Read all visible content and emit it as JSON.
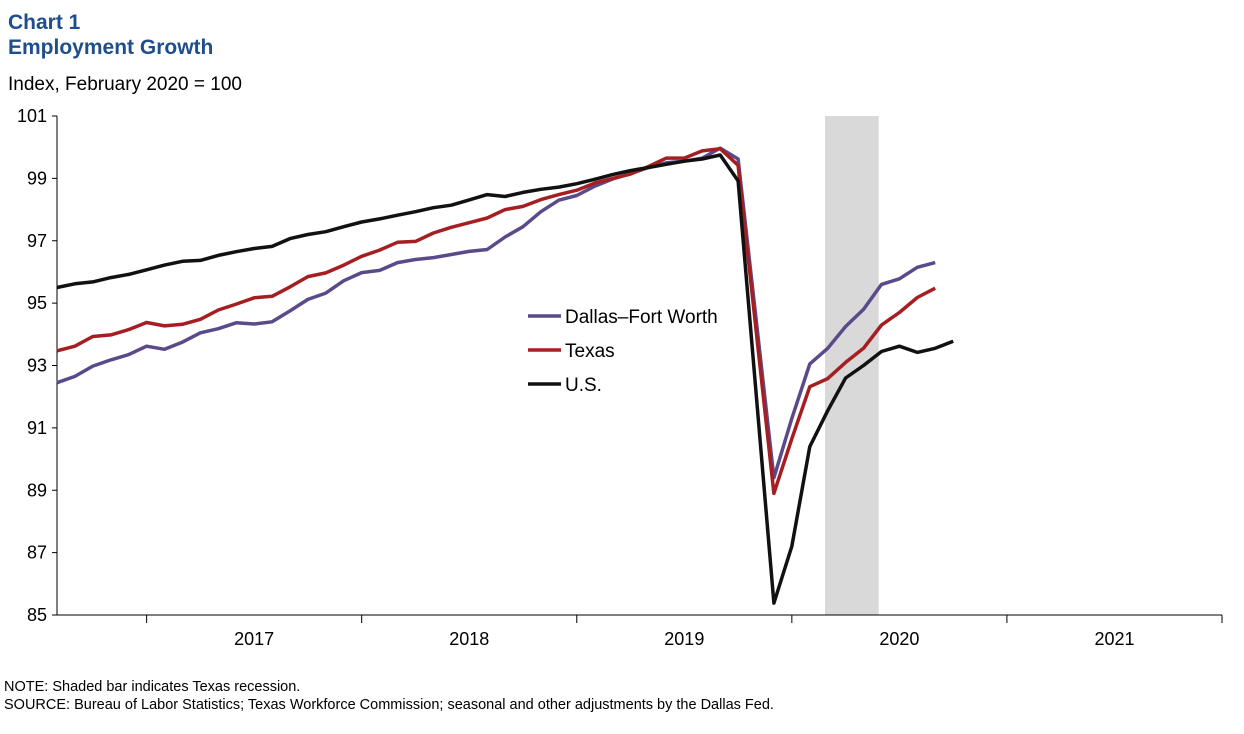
{
  "header": {
    "chart_number": "Chart 1",
    "title": "Employment  Growth",
    "subtitle": "Index, February 2020 = 100"
  },
  "notes": {
    "note": "NOTE:  Shaded bar indicates Texas  recession.",
    "source": "SOURCE:  Bureau of  Labor Statistics; Texas  Workforce Commission;  seasonal and other adjustments  by the Dallas Fed."
  },
  "colors": {
    "dfw": "#5B4A8A",
    "texas": "#A51E22",
    "us": "#111111",
    "recession": "#D9D9D9",
    "title": "#1F4E8C"
  },
  "chart_data": {
    "type": "line",
    "ylim": [
      85,
      101
    ],
    "yticks": [
      85,
      87,
      89,
      91,
      93,
      95,
      97,
      99,
      101
    ],
    "xlim": [
      "2016-08",
      "2021-12"
    ],
    "x_year_labels": [
      "2017",
      "2018",
      "2019",
      "2020",
      "2021"
    ],
    "recession_shading": {
      "start": "2020-03",
      "end": "2020-06"
    },
    "legend": {
      "position": "center"
    },
    "x": [
      "2016-08",
      "2016-09",
      "2016-10",
      "2016-11",
      "2016-12",
      "2017-01",
      "2017-02",
      "2017-03",
      "2017-04",
      "2017-05",
      "2017-06",
      "2017-07",
      "2017-08",
      "2017-09",
      "2017-10",
      "2017-11",
      "2017-12",
      "2018-01",
      "2018-02",
      "2018-03",
      "2018-04",
      "2018-05",
      "2018-06",
      "2018-07",
      "2018-08",
      "2018-09",
      "2018-10",
      "2018-11",
      "2018-12",
      "2019-01",
      "2019-02",
      "2019-03",
      "2019-04",
      "2019-05",
      "2019-06",
      "2019-07",
      "2019-08",
      "2019-09",
      "2019-10",
      "2019-11",
      "2019-12",
      "2020-01",
      "2020-02",
      "2020-03",
      "2020-04",
      "2020-05",
      "2020-06",
      "2020-07",
      "2020-08",
      "2020-09",
      "2020-10",
      "2020-11",
      "2020-12",
      "2021-01",
      "2021-02",
      "2021-03",
      "2021-04"
    ],
    "series": [
      {
        "name": "Dallas–Fort Worth",
        "values": [
          92.45,
          92.65,
          92.98,
          93.18,
          93.35,
          93.62,
          93.52,
          93.75,
          94.05,
          94.18,
          94.37,
          94.33,
          94.4,
          94.75,
          95.12,
          95.32,
          95.72,
          95.98,
          96.05,
          96.3,
          96.4,
          96.46,
          96.56,
          96.66,
          96.72,
          97.12,
          97.45,
          97.93,
          98.3,
          98.45,
          98.75,
          98.98,
          99.15,
          99.35,
          99.5,
          99.55,
          99.65,
          99.97,
          99.62,
          null,
          89.4,
          91.3,
          93.05,
          93.55,
          94.25,
          94.8,
          95.6,
          95.78,
          96.15,
          96.3,
          null,
          null,
          null,
          null,
          null,
          null,
          null
        ]
      },
      {
        "name": "Texas",
        "values": [
          93.47,
          93.62,
          93.93,
          93.98,
          94.15,
          94.38,
          94.27,
          94.32,
          94.48,
          94.78,
          94.97,
          95.17,
          95.22,
          95.52,
          95.85,
          95.97,
          96.22,
          96.5,
          96.7,
          96.95,
          96.98,
          97.25,
          97.43,
          97.58,
          97.73,
          98.0,
          98.1,
          98.32,
          98.48,
          98.62,
          98.85,
          99.0,
          99.14,
          99.38,
          99.65,
          99.65,
          99.88,
          99.95,
          99.42,
          null,
          88.9,
          90.65,
          92.32,
          92.58,
          93.1,
          93.55,
          94.3,
          94.7,
          95.18,
          95.48,
          null,
          null,
          null,
          null,
          null,
          null,
          null
        ]
      },
      {
        "name": "U.S.",
        "values": [
          95.5,
          95.62,
          95.68,
          95.82,
          95.92,
          96.07,
          96.22,
          96.34,
          96.37,
          96.53,
          96.65,
          96.75,
          96.82,
          97.07,
          97.2,
          97.29,
          97.45,
          97.6,
          97.7,
          97.82,
          97.93,
          98.06,
          98.14,
          98.31,
          98.48,
          98.42,
          98.55,
          98.65,
          98.72,
          98.83,
          98.97,
          99.12,
          99.25,
          99.35,
          99.45,
          99.55,
          99.62,
          99.75,
          98.92,
          null,
          85.38,
          87.2,
          90.4,
          91.55,
          92.6,
          93.0,
          93.45,
          93.62,
          93.42,
          93.55,
          93.78,
          null,
          null,
          null,
          null,
          null,
          null
        ]
      }
    ]
  }
}
